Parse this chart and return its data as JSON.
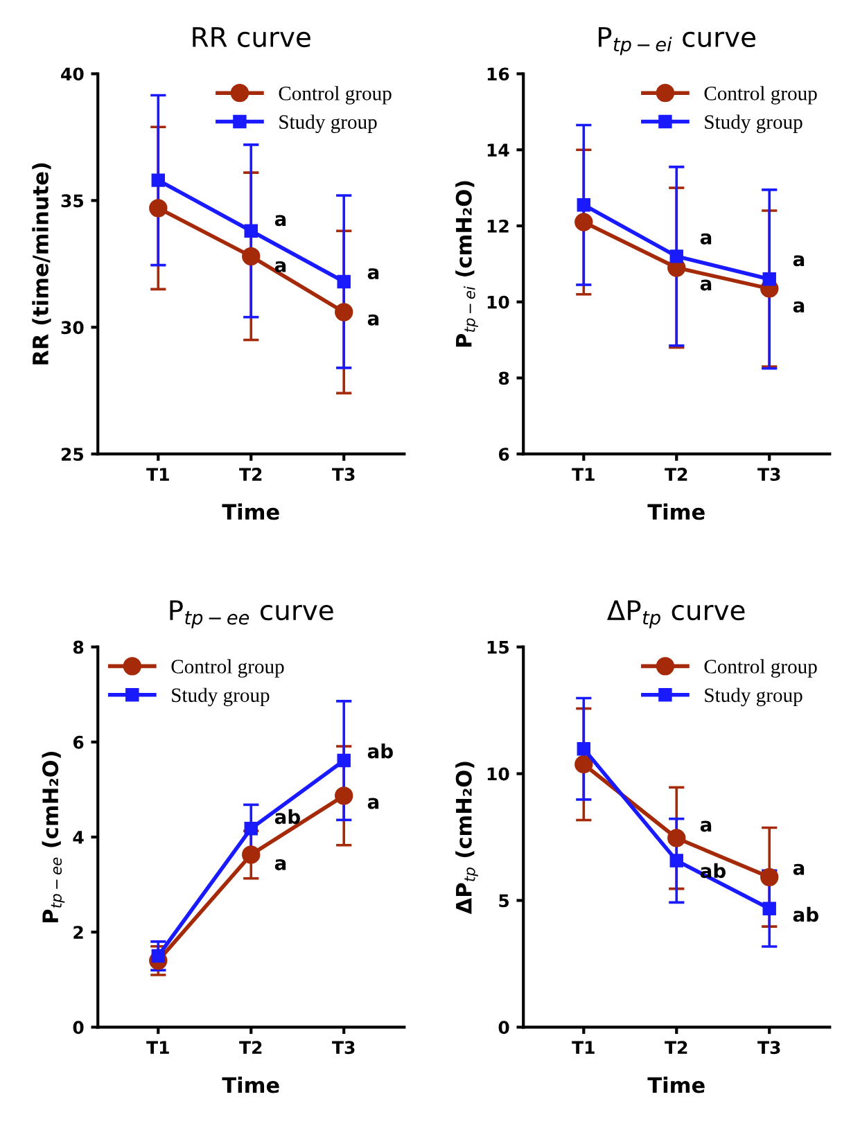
{
  "chart_data": [
    {
      "type": "line",
      "title": "RR curve",
      "xlabel": "Time",
      "ylabel": "RR (time/minute)",
      "categories": [
        "T1",
        "T2",
        "T3"
      ],
      "ylim": [
        25,
        40
      ],
      "yticks": [
        25,
        30,
        35,
        40
      ],
      "legend": "top right",
      "grid": false,
      "series": [
        {
          "name": "Control group",
          "color": "#a52a0a",
          "marker": "circle",
          "values": [
            34.7,
            32.8,
            30.6
          ],
          "errors": [
            3.2,
            3.3,
            3.2
          ]
        },
        {
          "name": "Study group",
          "color": "#1a1aff",
          "marker": "square",
          "values": [
            35.8,
            33.8,
            31.8
          ],
          "errors": [
            3.35,
            3.4,
            3.4
          ]
        }
      ],
      "annotations": [
        {
          "text": "a",
          "x": "T2",
          "y": 33.8
        },
        {
          "text": "a",
          "x": "T2",
          "y": 32.8
        },
        {
          "text": "a",
          "x": "T3",
          "y": 31.8
        },
        {
          "text": "a",
          "x": "T3",
          "y": 30.6
        }
      ]
    },
    {
      "type": "line",
      "title": "P$_{tp−ei}$ curve",
      "xlabel": "Time",
      "ylabel": "P$_{tp−ei}$ (cmH₂O)",
      "categories": [
        "T1",
        "T2",
        "T3"
      ],
      "ylim": [
        6,
        16
      ],
      "yticks": [
        6,
        8,
        10,
        12,
        14,
        16
      ],
      "legend": "top right",
      "grid": false,
      "series": [
        {
          "name": "Control group",
          "color": "#a52a0a",
          "marker": "circle",
          "values": [
            12.1,
            10.9,
            10.35
          ],
          "errors": [
            1.9,
            2.1,
            2.05
          ]
        },
        {
          "name": "Study group",
          "color": "#1a1aff",
          "marker": "square",
          "values": [
            12.55,
            11.2,
            10.6
          ],
          "errors": [
            2.1,
            2.35,
            2.35
          ]
        }
      ],
      "annotations": [
        {
          "text": "a",
          "x": "T2",
          "y": 11.2
        },
        {
          "text": "a",
          "x": "T2",
          "y": 10.9
        },
        {
          "text": "a",
          "x": "T3",
          "y": 10.6
        },
        {
          "text": "a",
          "x": "T3",
          "y": 10.35
        }
      ]
    },
    {
      "type": "line",
      "title": "P$_{tp−ee}$ curve",
      "xlabel": "Time",
      "ylabel": "P$_{tp−ee}$ (cmH₂O)",
      "categories": [
        "T1",
        "T2",
        "T3"
      ],
      "ylim": [
        0,
        8
      ],
      "yticks": [
        0,
        2,
        4,
        6,
        8
      ],
      "legend": "top left",
      "grid": false,
      "series": [
        {
          "name": "Control group",
          "color": "#a52a0a",
          "marker": "circle",
          "values": [
            1.4,
            3.63,
            4.87
          ],
          "errors": [
            0.3,
            0.5,
            1.04
          ]
        },
        {
          "name": "Study group",
          "color": "#1a1aff",
          "marker": "square",
          "values": [
            1.5,
            4.18,
            5.61
          ],
          "errors": [
            0.3,
            0.5,
            1.25
          ]
        }
      ],
      "annotations": [
        {
          "text": "ab",
          "x": "T2",
          "y": 4.18
        },
        {
          "text": "a",
          "x": "T2",
          "y": 3.63
        },
        {
          "text": "ab",
          "x": "T3",
          "y": 5.61
        },
        {
          "text": "a",
          "x": "T3",
          "y": 4.87
        }
      ]
    },
    {
      "type": "line",
      "title": "ΔP$_{tp}$ curve",
      "xlabel": "Time",
      "ylabel": "ΔP$_{tp}$ (cmH₂O)",
      "categories": [
        "T1",
        "T2",
        "T3"
      ],
      "ylim": [
        0,
        15
      ],
      "yticks": [
        0,
        5,
        10,
        15
      ],
      "legend": "top right",
      "grid": false,
      "series": [
        {
          "name": "Control group",
          "color": "#a52a0a",
          "marker": "circle",
          "values": [
            10.37,
            7.46,
            5.92
          ],
          "errors": [
            2.2,
            2.0,
            1.95
          ]
        },
        {
          "name": "Study group",
          "color": "#1a1aff",
          "marker": "square",
          "values": [
            10.98,
            6.57,
            4.68
          ],
          "errors": [
            2.0,
            1.65,
            1.5
          ]
        }
      ],
      "annotations": [
        {
          "text": "a",
          "x": "T2",
          "y": 7.46
        },
        {
          "text": "ab",
          "x": "T2",
          "y": 6.57
        },
        {
          "text": "a",
          "x": "T3",
          "y": 5.92
        },
        {
          "text": "ab",
          "x": "T3",
          "y": 4.68
        }
      ]
    }
  ]
}
